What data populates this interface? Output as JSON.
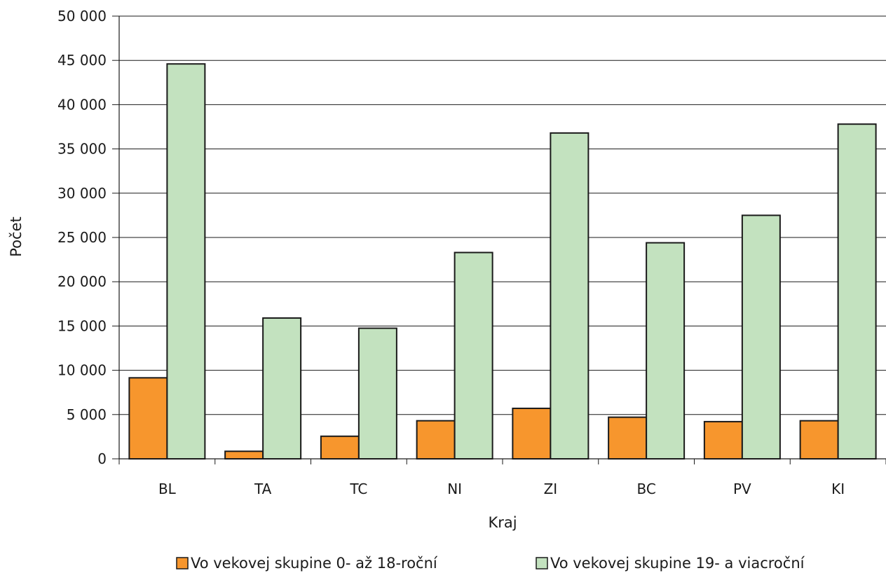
{
  "chart_data": {
    "type": "bar",
    "categories": [
      "BL",
      "TA",
      "TC",
      "NI",
      "ZI",
      "BC",
      "PV",
      "KI"
    ],
    "series": [
      {
        "name": "Vo vekovej skupine 0- až 18-roční",
        "color": "#f7962d",
        "values": [
          9150,
          850,
          2550,
          4300,
          5700,
          4700,
          4200,
          4300
        ]
      },
      {
        "name": "Vo vekovej skupine 19- a viacroční",
        "color": "#c3e2bf",
        "values": [
          44600,
          15900,
          14750,
          23300,
          36800,
          24400,
          27500,
          37800
        ]
      }
    ],
    "ylim": [
      0,
      50000
    ],
    "yticks": [
      0,
      5000,
      10000,
      15000,
      20000,
      25000,
      30000,
      35000,
      40000,
      45000,
      50000
    ],
    "ytick_labels": [
      "0",
      "5 000",
      "10 000",
      "15 000",
      "20 000",
      "25 000",
      "30 000",
      "35 000",
      "40 000",
      "45 000",
      "50 000"
    ],
    "xlabel": "Kraj",
    "ylabel": "Počet",
    "grid": true,
    "legend": "bottom"
  }
}
